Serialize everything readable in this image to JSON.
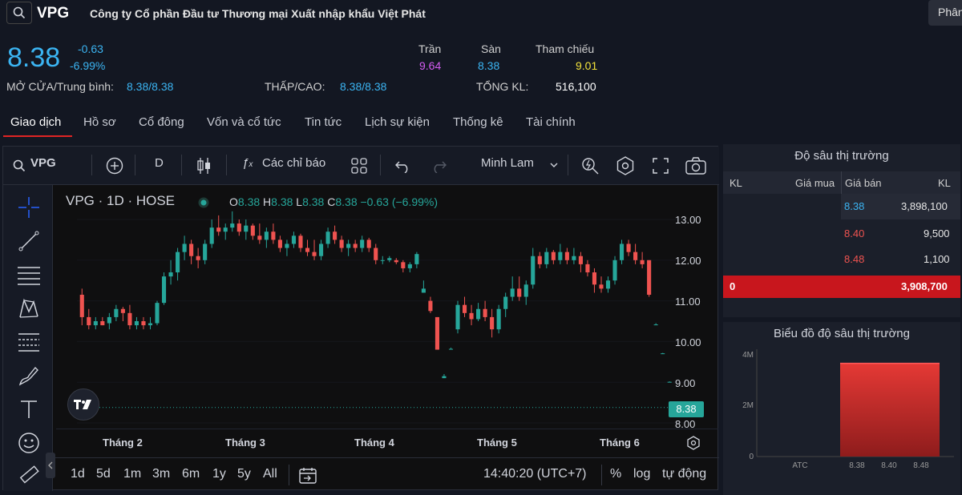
{
  "header": {
    "ticker": "VPG",
    "company_name": "Công ty Cổ phần Đầu tư Thương mại Xuất nhập khẩu Việt Phát",
    "lang_button": "Phân"
  },
  "quote": {
    "price": "8.38",
    "change": "-0.63",
    "change_pct": "-6.99%",
    "ceiling_label": "Trần",
    "ceiling_value": "9.64",
    "floor_label": "Sàn",
    "floor_value": "8.38",
    "ref_label": "Tham chiếu",
    "ref_value": "9.01",
    "open_avg_label": "MỞ CỬA/Trung bình:",
    "open_avg_value": "8.38/8.38",
    "lowhigh_label": "THẤP/CAO:",
    "lowhigh_value": "8.38/8.38",
    "volume_label": "TỔNG KL:",
    "volume_value": "516,100",
    "colors": {
      "price": "#3bb4f2",
      "ceiling": "#d35cf0",
      "floor": "#3bb4f2",
      "ref": "#f2e23b"
    }
  },
  "tabs": [
    "Giao dịch",
    "Hồ sơ",
    "Cổ đông",
    "Vốn và cổ tức",
    "Tin tức",
    "Lịch sự kiện",
    "Thống kê",
    "Tài chính"
  ],
  "chart_toolbar": {
    "symbol": "VPG",
    "interval": "D",
    "indicators_label": "Các chỉ báo",
    "theme_label": "Minh Lam"
  },
  "chart_legend": {
    "title": "VPG · 1D · HOSE",
    "o_key": "O",
    "o_val": "8.38",
    "h_key": "H",
    "h_val": "8.38",
    "l_key": "L",
    "l_val": "8.38",
    "c_key": "C",
    "c_val": "8.38",
    "chg": "−0.63 (−6.99%)"
  },
  "current_price_tag": "8.38",
  "range_bar": {
    "ranges": [
      "1d",
      "5d",
      "1m",
      "3m",
      "6m",
      "1y",
      "5y",
      "All"
    ],
    "clock": "14:40:20 (UTC+7)",
    "pct": "%",
    "log": "log",
    "auto": "tự động"
  },
  "chart_data": {
    "type": "candlestick",
    "x_labels": [
      "Tháng 2",
      "Tháng 3",
      "Tháng 4",
      "Tháng 5",
      "Tháng 6"
    ],
    "y_ticks": [
      "13.00",
      "12.00",
      "11.00",
      "10.00",
      "9.00",
      "8.00"
    ],
    "ylim": [
      8.0,
      13.0
    ],
    "ohlc": [
      [
        11.15,
        11.3,
        10.4,
        10.6
      ],
      [
        10.6,
        10.8,
        10.3,
        10.4
      ],
      [
        10.4,
        10.6,
        10.3,
        10.5
      ],
      [
        10.5,
        10.6,
        10.4,
        10.4
      ],
      [
        10.45,
        10.7,
        10.3,
        10.6
      ],
      [
        10.6,
        10.9,
        10.5,
        10.8
      ],
      [
        10.8,
        10.85,
        10.5,
        10.7
      ],
      [
        10.7,
        10.9,
        10.3,
        10.4
      ],
      [
        10.4,
        10.6,
        10.3,
        10.5
      ],
      [
        10.5,
        10.6,
        10.3,
        10.4
      ],
      [
        10.4,
        10.6,
        10.3,
        10.45
      ],
      [
        10.45,
        11.0,
        10.4,
        10.95
      ],
      [
        10.95,
        11.7,
        10.9,
        11.6
      ],
      [
        11.6,
        12.0,
        11.4,
        11.7
      ],
      [
        11.7,
        12.3,
        11.5,
        12.2
      ],
      [
        12.2,
        12.6,
        12.0,
        12.4
      ],
      [
        12.4,
        12.5,
        11.9,
        12.1
      ],
      [
        12.1,
        12.3,
        11.8,
        12.0
      ],
      [
        12.0,
        12.5,
        11.9,
        12.4
      ],
      [
        12.4,
        13.0,
        12.3,
        12.8
      ],
      [
        12.8,
        13.1,
        12.6,
        12.7
      ],
      [
        12.7,
        12.9,
        12.5,
        12.8
      ],
      [
        12.8,
        13.2,
        12.7,
        12.9
      ],
      [
        12.9,
        13.0,
        12.6,
        12.7
      ],
      [
        12.7,
        13.0,
        12.5,
        12.85
      ],
      [
        12.85,
        12.9,
        12.5,
        12.6
      ],
      [
        12.6,
        12.9,
        12.4,
        12.5
      ],
      [
        12.5,
        12.8,
        12.3,
        12.7
      ],
      [
        12.7,
        12.9,
        12.4,
        12.5
      ],
      [
        12.5,
        12.6,
        12.2,
        12.3
      ],
      [
        12.3,
        12.5,
        12.1,
        12.4
      ],
      [
        12.4,
        12.7,
        12.3,
        12.6
      ],
      [
        12.6,
        12.65,
        12.2,
        12.3
      ],
      [
        12.3,
        12.5,
        12.1,
        12.2
      ],
      [
        12.2,
        12.5,
        12.0,
        12.1
      ],
      [
        12.1,
        12.5,
        12.0,
        12.4
      ],
      [
        12.4,
        12.8,
        12.3,
        12.7
      ],
      [
        12.7,
        12.85,
        12.4,
        12.5
      ],
      [
        12.5,
        12.6,
        12.2,
        12.3
      ],
      [
        12.3,
        12.5,
        12.1,
        12.4
      ],
      [
        12.4,
        12.5,
        12.2,
        12.3
      ],
      [
        12.3,
        12.6,
        12.2,
        12.5
      ],
      [
        12.5,
        12.55,
        12.2,
        12.3
      ],
      [
        12.3,
        12.4,
        11.9,
        12.0
      ],
      [
        12.0,
        12.1,
        11.9,
        12.0
      ],
      [
        12.0,
        12.1,
        11.95,
        12.05
      ],
      [
        12.0,
        12.05,
        11.9,
        11.95
      ],
      [
        11.95,
        12.0,
        11.7,
        11.8
      ],
      [
        11.8,
        11.95,
        11.7,
        11.9
      ],
      [
        11.9,
        12.2,
        11.8,
        12.15
      ],
      [
        11.2,
        11.5,
        11.2,
        11.3
      ],
      [
        11.0,
        11.1,
        10.7,
        10.75
      ],
      [
        10.6,
        10.6,
        9.8,
        9.8
      ],
      [
        9.1,
        9.2,
        9.1,
        9.15
      ],
      [
        9.8,
        9.85,
        9.8,
        9.82
      ],
      [
        10.3,
        11.0,
        10.2,
        10.9
      ],
      [
        10.9,
        11.1,
        10.6,
        10.7
      ],
      [
        10.7,
        10.9,
        10.4,
        10.55
      ],
      [
        10.55,
        10.95,
        10.5,
        10.8
      ],
      [
        10.8,
        11.0,
        10.5,
        10.6
      ],
      [
        10.6,
        10.8,
        10.1,
        10.3
      ],
      [
        10.3,
        10.9,
        10.2,
        10.8
      ],
      [
        10.8,
        11.2,
        10.6,
        11.1
      ],
      [
        11.1,
        11.6,
        11.0,
        11.3
      ],
      [
        11.3,
        11.6,
        11.0,
        11.1
      ],
      [
        11.1,
        11.5,
        10.9,
        11.4
      ],
      [
        11.4,
        12.3,
        11.3,
        12.1
      ],
      [
        12.1,
        12.2,
        11.8,
        11.9
      ],
      [
        11.9,
        12.3,
        11.8,
        12.2
      ],
      [
        12.2,
        12.25,
        11.9,
        12.0
      ],
      [
        12.0,
        12.4,
        11.9,
        12.2
      ],
      [
        12.2,
        12.3,
        11.9,
        12.0
      ],
      [
        12.0,
        12.3,
        11.9,
        12.1
      ],
      [
        12.1,
        12.2,
        11.7,
        11.9
      ],
      [
        11.9,
        12.0,
        11.6,
        11.7
      ],
      [
        11.7,
        11.8,
        11.2,
        11.4
      ],
      [
        11.4,
        11.6,
        11.2,
        11.3
      ],
      [
        11.3,
        11.6,
        11.2,
        11.5
      ],
      [
        11.5,
        12.1,
        11.4,
        12.0
      ],
      [
        12.0,
        12.5,
        11.9,
        12.4
      ],
      [
        12.4,
        12.5,
        12.1,
        12.2
      ],
      [
        12.2,
        12.4,
        11.9,
        12.0
      ],
      [
        12.0,
        12.2,
        11.8,
        11.9
      ],
      [
        12.0,
        12.0,
        11.1,
        11.15
      ],
      [
        10.4,
        10.45,
        10.4,
        10.42
      ],
      [
        9.7,
        9.72,
        9.7,
        9.71
      ],
      [
        9.0,
        9.02,
        9.0,
        9.01
      ],
      [
        8.38,
        8.38,
        8.38,
        8.38
      ]
    ],
    "up_color": "#26a69a",
    "down_color": "#ef5350"
  },
  "depth": {
    "title": "Độ sâu thị trường",
    "headers": {
      "vol_buy": "KL",
      "bid": "Giá mua",
      "ask": "Giá bán",
      "vol_sell": "KL"
    },
    "rows": [
      {
        "ask": "8.38",
        "vol": "3,898,100",
        "color": "#3bb4f2"
      },
      {
        "ask": "8.40",
        "vol": "9,500",
        "color": "#ef5350"
      },
      {
        "ask": "8.48",
        "vol": "1,100",
        "color": "#ef5350"
      }
    ],
    "total_buy": "0",
    "total_sell": "3,908,700"
  },
  "depth_chart": {
    "title": "Biểu đồ độ sâu thị trường",
    "y_ticks": [
      "4M",
      "2M",
      "0"
    ],
    "x_labels": [
      "ATC",
      "8.38",
      "8.40",
      "8.48"
    ],
    "cumulative_sell": 3908700,
    "y_max": 4500000
  }
}
